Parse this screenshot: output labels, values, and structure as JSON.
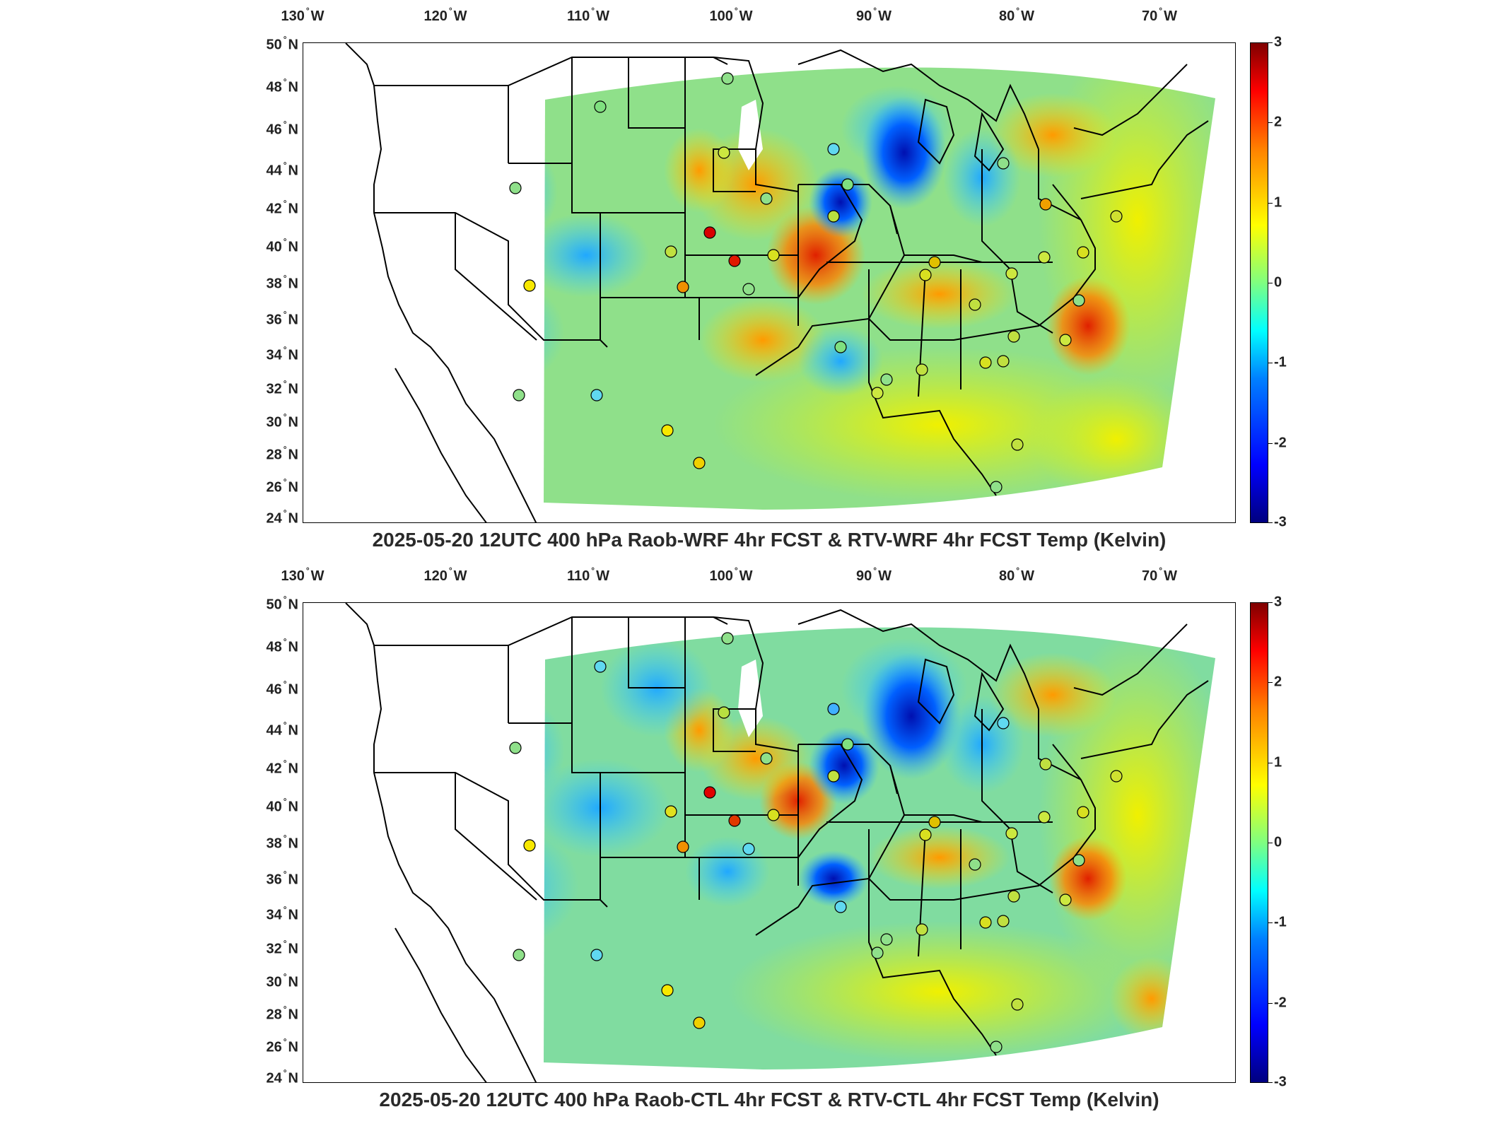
{
  "map_panels": [
    {
      "title": "2025-05-20 12UTC 400 hPa Raob-WRF 4hr FCST & RTV-WRF 4hr FCST Temp (Kelvin)",
      "lon_labels": [
        "130",
        "120",
        "110",
        "100",
        "90",
        "80",
        "70"
      ],
      "lat_labels": [
        "50",
        "48",
        "46",
        "44",
        "42",
        "40",
        "38",
        "36",
        "34",
        "32",
        "30",
        "28",
        "26",
        "24"
      ],
      "colorbar": {
        "labels": [
          "3",
          "2",
          "1",
          "0",
          "-1",
          "-2",
          "-3"
        ]
      }
    },
    {
      "title": "2025-05-20 12UTC 400 hPa Raob-CTL 4hr FCST & RTV-CTL 4hr FCST Temp (Kelvin)",
      "lon_labels": [
        "130",
        "120",
        "110",
        "100",
        "90",
        "80",
        "70"
      ],
      "lat_labels": [
        "50",
        "48",
        "46",
        "44",
        "42",
        "40",
        "38",
        "36",
        "34",
        "32",
        "30",
        "28",
        "26",
        "24"
      ],
      "colorbar": {
        "labels": [
          "3",
          "2",
          "1",
          "0",
          "-1",
          "-2",
          "-3"
        ]
      }
    }
  ],
  "lon_suffix": "W",
  "lat_suffix": "N",
  "degree_symbol": "°",
  "colors": {
    "field_base": "#7fe07f",
    "warm": "#ffb000",
    "hot": "#e03000",
    "cool": "#40c0ff",
    "cold": "#0020c0",
    "border": "#000000"
  }
}
